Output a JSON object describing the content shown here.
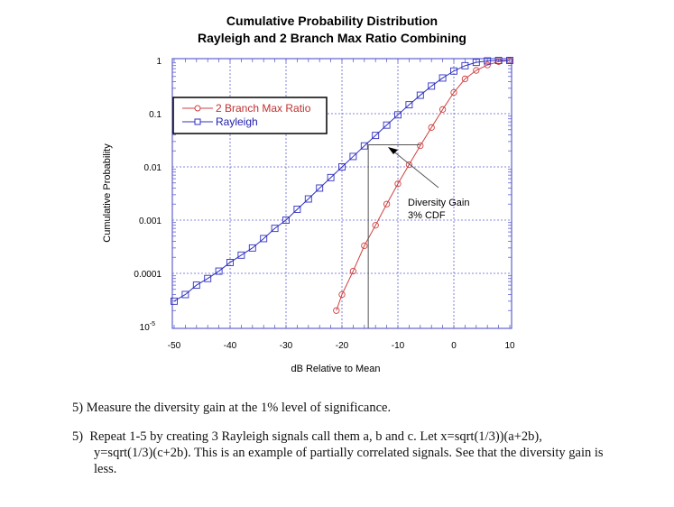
{
  "chart_data": {
    "type": "line",
    "title": "Cumulative Probability Distribution",
    "subtitle": "Rayleigh and 2 Branch Max Ratio Combining",
    "xlabel": "dB Relative to Mean",
    "ylabel": "Cumulative Probability",
    "xlim": [
      -50,
      10
    ],
    "ylim": [
      1e-05,
      1
    ],
    "yscale": "log",
    "grid": true,
    "legend_position": "top-left",
    "x_ticks": [
      "-50",
      "-40",
      "-30",
      "-20",
      "-10",
      "0",
      "10"
    ],
    "y_ticks": [
      {
        "label": "1",
        "value": 1
      },
      {
        "label": "0.1",
        "value": 0.1
      },
      {
        "label": "0.01",
        "value": 0.01
      },
      {
        "label": "0.001",
        "value": 0.001
      },
      {
        "label": "0.0001",
        "value": 0.0001
      },
      {
        "label": "10",
        "sup": "-5",
        "value": 1e-05
      }
    ],
    "series": [
      {
        "name": "2 Branch Max Ratio",
        "color": "#d04040",
        "marker": "circle",
        "x": [
          -21,
          -20,
          -18,
          -16,
          -14,
          -12,
          -10,
          -8,
          -6,
          -4,
          -2,
          0,
          2,
          4,
          6,
          8,
          10
        ],
        "y": [
          2e-05,
          4e-05,
          0.00011,
          0.00033,
          0.0008,
          0.002,
          0.0048,
          0.011,
          0.025,
          0.055,
          0.12,
          0.25,
          0.45,
          0.65,
          0.82,
          0.95,
          0.995
        ]
      },
      {
        "name": "Rayleigh",
        "color": "#3030c0",
        "marker": "square",
        "x": [
          -50,
          -48,
          -46,
          -44,
          -42,
          -40,
          -38,
          -36,
          -34,
          -32,
          -30,
          -28,
          -26,
          -24,
          -22,
          -20,
          -18,
          -16,
          -14,
          -12,
          -10,
          -8,
          -6,
          -4,
          -2,
          0,
          2,
          4,
          6,
          8,
          10
        ],
        "y": [
          3e-05,
          4e-05,
          6e-05,
          8e-05,
          0.00011,
          0.00016,
          0.00022,
          0.0003,
          0.00045,
          0.0007,
          0.001,
          0.0016,
          0.0025,
          0.004,
          0.0063,
          0.01,
          0.0157,
          0.0248,
          0.039,
          0.061,
          0.095,
          0.147,
          0.222,
          0.33,
          0.468,
          0.632,
          0.796,
          0.919,
          0.981,
          0.998,
          1.0
        ]
      }
    ],
    "annotation": {
      "text_line1": "Diversity Gain",
      "text_line2": "3% CDF",
      "level": 0.026,
      "x_from": -15.3,
      "x_to": -6
    }
  },
  "document": {
    "item5": "5) Measure the diversity gain at the 1% level of significance.",
    "item6_line1": "5)  Repeat 1-5 by creating 3 Rayleigh signals call them a, b and c. Let x=sqrt(1/3))(a+2b),",
    "item6_line2": "y=sqrt(1/3)(c+2b). This is an example of partially correlated signals. See that the diversity gain is",
    "item6_line3": "less."
  }
}
